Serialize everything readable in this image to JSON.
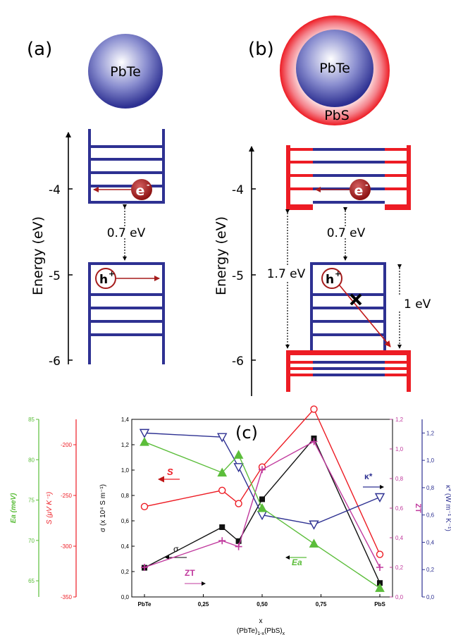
{
  "panels": {
    "a": {
      "label": "(a)",
      "core": "PbTe",
      "ylabel": "Energy (eV)",
      "ticks": [
        "-4",
        "-5",
        "-6"
      ],
      "gap": "0.7 eV",
      "electron": "e",
      "electron_sup": "-",
      "hole": "h",
      "hole_sup": "+"
    },
    "b": {
      "label": "(b)",
      "core": "PbTe",
      "shell": "PbS",
      "ylabel": "Energy (eV)",
      "ticks": [
        "-4",
        "-5",
        "-6"
      ],
      "gap": "0.7 eV",
      "offset_left": "1.7 eV",
      "offset_right": "1 eV",
      "electron": "e",
      "electron_sup": "-",
      "hole": "h",
      "hole_sup": "+"
    }
  },
  "colors": {
    "blue": "#2e3192",
    "red": "#ed1c24",
    "darkred": "#a51c1c",
    "green": "#5bbd3a",
    "magenta": "#c0399d"
  },
  "chart_data": {
    "type": "line",
    "label": "(c)",
    "xlabel": "x",
    "xlabel2_base": "(PbTe)",
    "xlabel2_sub1": "1-x",
    "xlabel2_mid": "(PbS)",
    "xlabel2_sub2": "x",
    "x_tick_labels": [
      "PbTe",
      "0,25",
      "0,50",
      "0,75",
      "PbS"
    ],
    "xlim": [
      0,
      1
    ],
    "ylabel_main": "σ (x 10⁴ S m⁻¹)",
    "ylim_main": [
      0,
      1.4
    ],
    "yticks_main": [
      "0,0",
      "0,2",
      "0,4",
      "0,6",
      "0,8",
      "1,0",
      "1,2",
      "1,4"
    ],
    "ylabel_zt": "ZT",
    "ylim_zt": [
      0,
      1.2
    ],
    "yticks_zt": [
      "0,0",
      "0,2",
      "0,4",
      "0,6",
      "0,8",
      "1,0",
      "1,2"
    ],
    "ylabel_kappa": "κ* (W m⁻¹ K⁻¹)",
    "ylim_kappa": [
      0,
      1.3
    ],
    "yticks_kappa": [
      "0,0",
      "0,2",
      "0,4",
      "0,6",
      "0,8",
      "1,0",
      "1,2"
    ],
    "ylabel_S": "S (μV K⁻¹)",
    "ylim_S": [
      -350,
      -175
    ],
    "yticks_S": [
      "-200",
      "-250",
      "-300",
      "-350"
    ],
    "ylabel_Ea": "Ea (meV)",
    "ylim_Ea": [
      63,
      85
    ],
    "yticks_Ea": [
      "85",
      "80",
      "75",
      "70",
      "65"
    ],
    "series": [
      {
        "name": "σ",
        "axis": "main",
        "color": "#111111",
        "marker": "square",
        "x": [
          0,
          0.33,
          0.4,
          0.5,
          0.72,
          1.0
        ],
        "y": [
          0.23,
          0.55,
          0.44,
          0.77,
          1.25,
          0.11
        ]
      },
      {
        "name": "S",
        "axis": "S",
        "color": "#ed1c24",
        "marker": "circle",
        "x": [
          0,
          0.33,
          0.4,
          0.5,
          0.72,
          1.0
        ],
        "y": [
          -261,
          -245,
          -258,
          -222,
          -165,
          -308
        ]
      },
      {
        "name": "ZT",
        "axis": "zt",
        "color": "#c0399d",
        "marker": "plus",
        "x": [
          0,
          0.33,
          0.4,
          0.5,
          0.72,
          1.0
        ],
        "y": [
          0.2,
          0.38,
          0.34,
          0.86,
          1.05,
          0.2
        ]
      },
      {
        "name": "κ*",
        "axis": "kappa",
        "color": "#2e3192",
        "marker": "triangle-down",
        "x": [
          0,
          0.33,
          0.4,
          0.5,
          0.72,
          1.0
        ],
        "y": [
          1.2,
          1.17,
          0.95,
          0.6,
          0.53,
          0.73
        ]
      },
      {
        "name": "Ea",
        "axis": "Ea",
        "color": "#5bbd3a",
        "marker": "triangle-up",
        "x": [
          0,
          0.33,
          0.4,
          0.5,
          0.72,
          1.0
        ],
        "y": [
          82.2,
          78.4,
          80.6,
          74.0,
          69.6,
          64.1
        ]
      }
    ],
    "series_labels": {
      "sigma": "σ",
      "S": "S",
      "ZT": "ZT",
      "kappa": "κ*",
      "Ea": "Ea"
    }
  }
}
